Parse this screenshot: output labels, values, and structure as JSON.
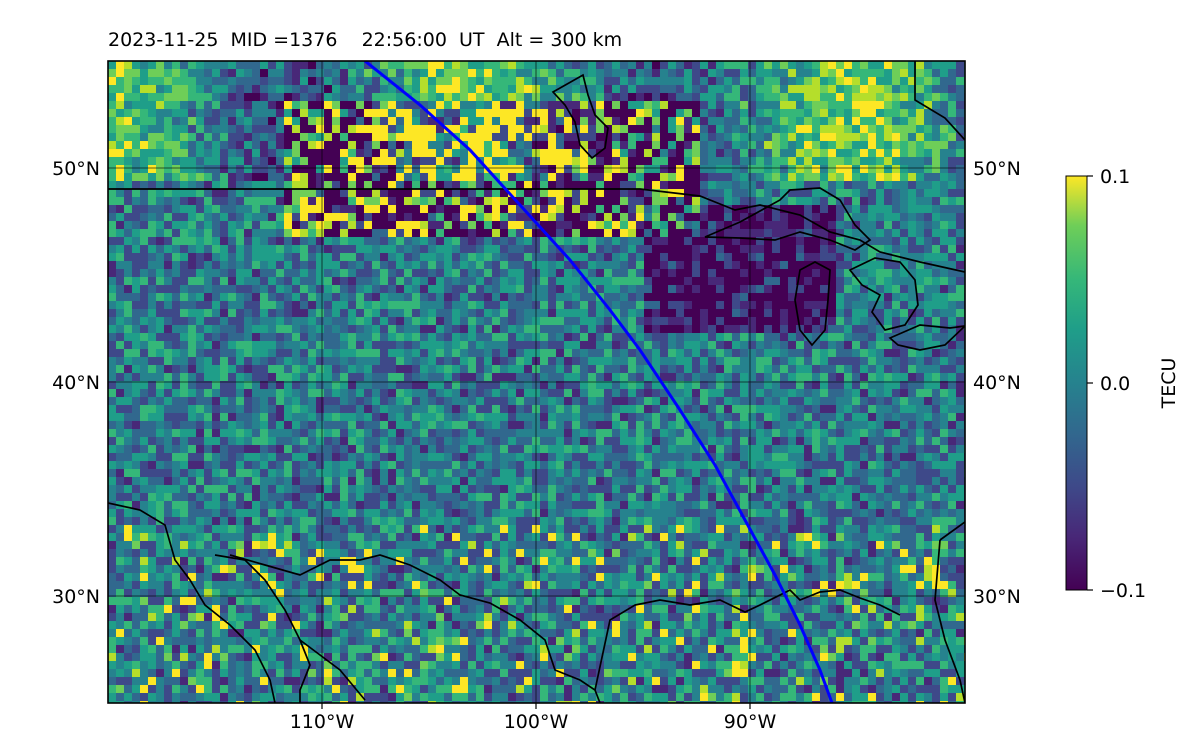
{
  "header": {
    "title": "2023-11-25  MID =1376    22:56:00  UT  Alt = 300 km"
  },
  "map": {
    "lat_labels": [
      "50°N",
      "40°N",
      "30°N"
    ],
    "lon_labels": [
      "110°W",
      "100°W",
      "90°W"
    ],
    "lat_range": [
      25,
      55
    ],
    "lon_range": [
      -120,
      -80
    ],
    "gridlines": true,
    "features": [
      "coastlines",
      "country-borders",
      "great-lakes"
    ]
  },
  "colorbar": {
    "max_label": "0.1",
    "mid_label": "0.0",
    "min_label": "−0.1",
    "unit": "TECU",
    "colormap": "viridis",
    "vmin": -0.1,
    "vmax": 0.1
  },
  "track": {
    "color": "#0000ff"
  }
}
